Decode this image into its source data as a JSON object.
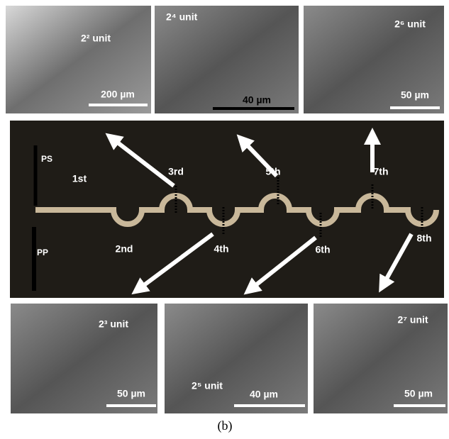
{
  "panels": [
    {
      "label": "2² unit",
      "scale_bar": "200 µm"
    },
    {
      "label": "2⁴ unit",
      "scale_bar": "40 µm"
    },
    {
      "label": "2⁶ unit",
      "scale_bar": "50 µm"
    },
    {
      "label": "2³ unit",
      "scale_bar": "50 µm"
    },
    {
      "label": "2⁵ unit",
      "scale_bar": "40 µm"
    },
    {
      "label": "2⁷ unit",
      "scale_bar": "50 µm"
    }
  ],
  "main": {
    "labels": [
      "PS",
      "PP",
      "1st",
      "2nd",
      "3rd",
      "4th",
      "5th",
      "6th",
      "7th",
      "8th"
    ]
  },
  "caption": "(b)"
}
